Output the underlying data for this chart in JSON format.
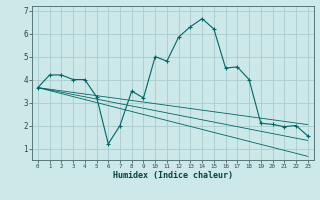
{
  "xlabel": "Humidex (Indice chaleur)",
  "background_color": "#cce8e8",
  "grid_color": "#aacccc",
  "line_color": "#006666",
  "x_values": [
    0,
    1,
    2,
    3,
    4,
    5,
    6,
    7,
    8,
    9,
    10,
    11,
    12,
    13,
    14,
    15,
    16,
    17,
    18,
    19,
    20,
    21,
    22,
    23
  ],
  "y_main": [
    3.65,
    4.2,
    4.2,
    4.0,
    4.0,
    3.25,
    1.2,
    2.0,
    3.5,
    3.2,
    5.0,
    4.8,
    5.85,
    6.3,
    6.65,
    6.2,
    4.5,
    4.55,
    4.0,
    2.1,
    2.05,
    1.95,
    2.0,
    1.55
  ],
  "y_linear1": [
    3.65,
    3.52,
    3.39,
    3.26,
    3.13,
    3.0,
    2.87,
    2.74,
    2.61,
    2.48,
    2.35,
    2.22,
    2.09,
    1.96,
    1.83,
    1.7,
    1.57,
    1.44,
    1.31,
    1.18,
    1.05,
    0.92,
    0.79,
    0.66
  ],
  "y_linear2": [
    3.65,
    3.55,
    3.45,
    3.35,
    3.25,
    3.15,
    3.05,
    2.95,
    2.85,
    2.75,
    2.65,
    2.55,
    2.45,
    2.35,
    2.25,
    2.15,
    2.05,
    1.95,
    1.85,
    1.75,
    1.65,
    1.55,
    1.45,
    1.35
  ],
  "y_linear3": [
    3.65,
    3.58,
    3.51,
    3.44,
    3.37,
    3.3,
    3.23,
    3.16,
    3.09,
    3.02,
    2.95,
    2.88,
    2.81,
    2.74,
    2.67,
    2.6,
    2.53,
    2.46,
    2.39,
    2.32,
    2.25,
    2.18,
    2.11,
    2.04
  ],
  "ylim": [
    0.5,
    7.2
  ],
  "xlim": [
    -0.5,
    23.5
  ],
  "yticks": [
    1,
    2,
    3,
    4,
    5,
    6,
    7
  ],
  "xtick_labels": [
    "0",
    "1",
    "2",
    "3",
    "4",
    "5",
    "6",
    "7",
    "8",
    "9",
    "10",
    "11",
    "12",
    "13",
    "14",
    "15",
    "16",
    "17",
    "18",
    "19",
    "20",
    "21",
    "22",
    "23"
  ]
}
